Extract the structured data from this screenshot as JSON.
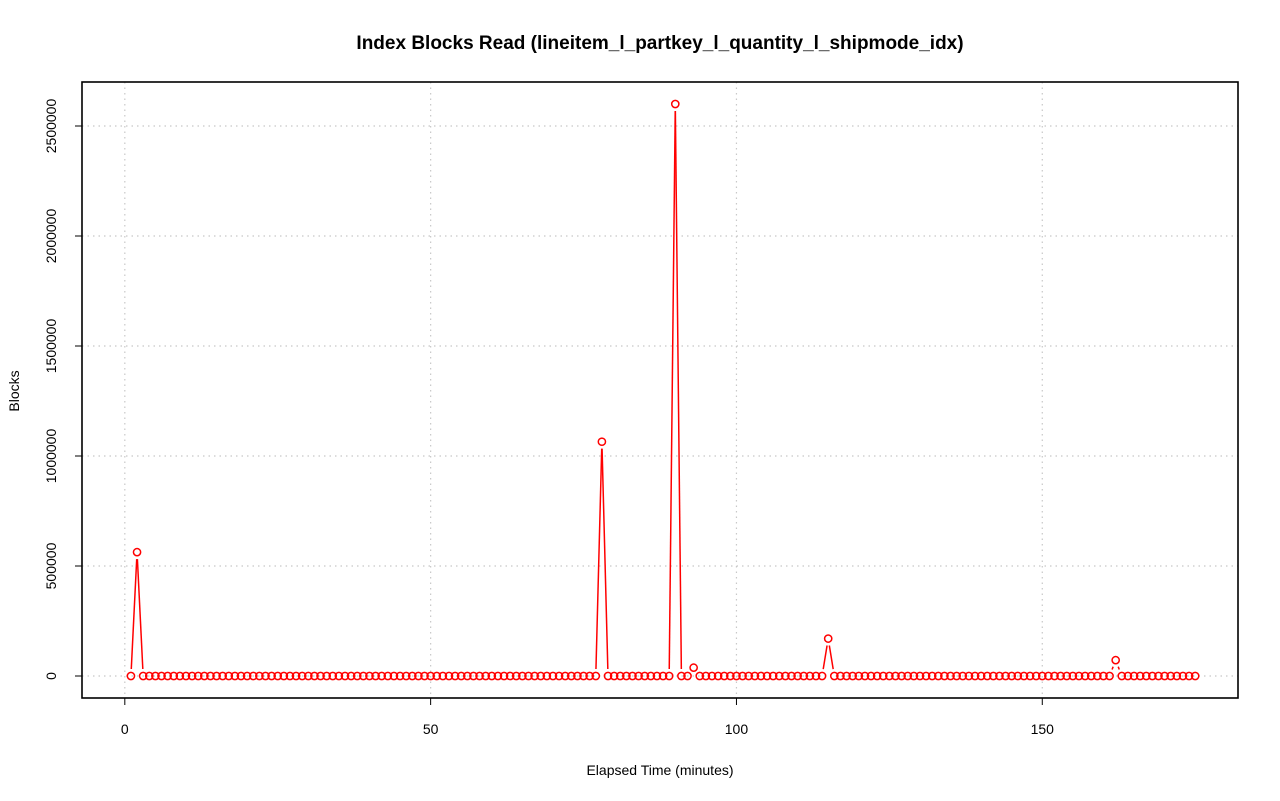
{
  "chart_data": {
    "type": "line",
    "title": "Index Blocks Read (lineitem_l_partkey_l_quantity_l_shipmode_idx)",
    "xlabel": "Elapsed Time (minutes)",
    "ylabel": "Blocks",
    "xlim": [
      -7,
      182
    ],
    "ylim": [
      -100000,
      2700000
    ],
    "xticks": [
      0,
      50,
      100,
      150
    ],
    "xtick_labels": [
      "0",
      "50",
      "100",
      "150"
    ],
    "yticks": [
      0,
      500000,
      1000000,
      1500000,
      2000000,
      2500000
    ],
    "ytick_labels": [
      "0",
      "500000",
      "1000000",
      "1500000",
      "2000000",
      "2500000"
    ],
    "grid": true,
    "plot_style": "both points and lines",
    "series": [
      {
        "color": "#ff0000",
        "x_start": 1,
        "x_end": 175,
        "baseline": 0,
        "spikes": [
          {
            "x": 2,
            "y": 563000
          },
          {
            "x": 78,
            "y": 1065000
          },
          {
            "x": 90,
            "y": 2600000
          },
          {
            "x": 93,
            "y": 38000
          },
          {
            "x": 115,
            "y": 170000
          },
          {
            "x": 162,
            "y": 72000
          }
        ]
      }
    ]
  }
}
